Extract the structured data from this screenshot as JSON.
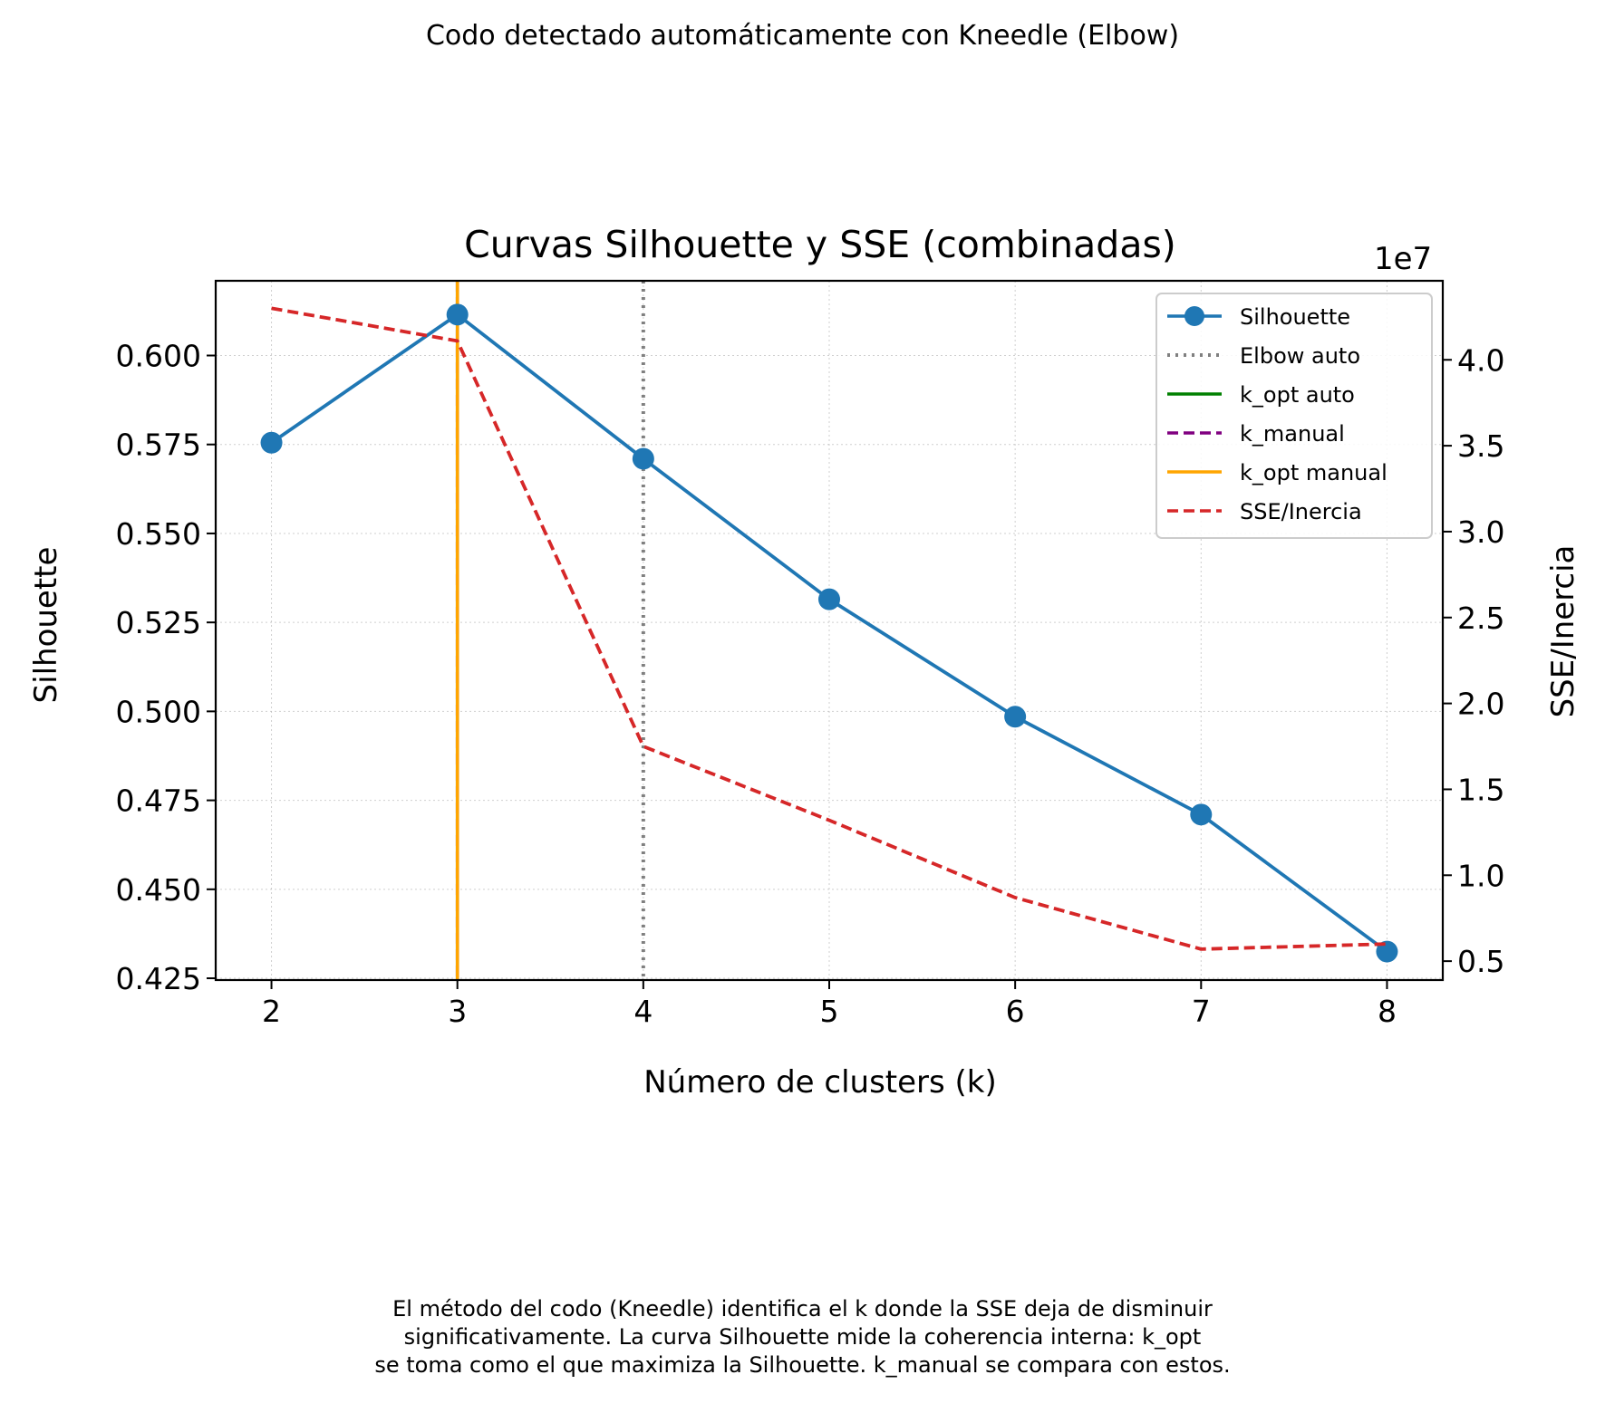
{
  "suptitle": "Codo detectado automáticamente con Kneedle (Elbow)",
  "caption": {
    "lines": [
      "El método del codo (Kneedle) identifica el k donde la SSE deja de disminuir",
      "significativamente. La curva Silhouette mide la coherencia interna: k_opt",
      "se toma como el que maximiza la Silhouette. k_manual se compara con estos."
    ]
  },
  "chart_data": {
    "type": "line",
    "title": "Curvas Silhouette y SSE (combinadas)",
    "xlabel": "Número de clusters (k)",
    "ylabel": "Silhouette",
    "y2label": "SSE/Inercia",
    "y2_offset_text": "1e7",
    "x": [
      2,
      3,
      4,
      5,
      6,
      7,
      8
    ],
    "xlim": [
      1.7,
      8.3
    ],
    "ylim": [
      0.4245,
      0.621
    ],
    "y2lim": [
      0.39,
      4.46
    ],
    "x_ticks": [
      "2",
      "3",
      "4",
      "5",
      "6",
      "7",
      "8"
    ],
    "y_ticks": [
      "0.425",
      "0.450",
      "0.475",
      "0.500",
      "0.525",
      "0.550",
      "0.575",
      "0.600"
    ],
    "y2_ticks": [
      "0.5",
      "1.0",
      "1.5",
      "2.0",
      "2.5",
      "3.0",
      "3.5",
      "4.0"
    ],
    "grid": true,
    "legend_position": "top-right",
    "series": [
      {
        "name": "Silhouette",
        "axis": "left",
        "style": "solid-marker",
        "color": "#1f77b4",
        "values": [
          0.5755,
          0.6115,
          0.571,
          0.5315,
          0.4985,
          0.471,
          0.4325
        ]
      },
      {
        "name": "SSE/Inercia",
        "axis": "right",
        "style": "dashed",
        "color": "#d62728",
        "values": [
          4.3,
          4.11,
          1.75,
          1.32,
          0.87,
          0.57,
          0.6
        ]
      }
    ],
    "vlines": [
      {
        "name": "Elbow auto",
        "x": 4,
        "style": "dotted",
        "color": "#808080"
      },
      {
        "name": "k_opt auto",
        "x": 3,
        "style": "solid",
        "color": "#008000"
      },
      {
        "name": "k_manual",
        "x": 3,
        "style": "dashed",
        "color": "#800080"
      },
      {
        "name": "k_opt manual",
        "x": 3,
        "style": "solid",
        "color": "#ffa500"
      }
    ],
    "legend": [
      {
        "label": "Silhouette",
        "color": "#1f77b4",
        "style": "solid-marker"
      },
      {
        "label": "Elbow auto",
        "color": "#808080",
        "style": "dotted"
      },
      {
        "label": "k_opt auto",
        "color": "#008000",
        "style": "solid"
      },
      {
        "label": "k_manual",
        "color": "#800080",
        "style": "dashed"
      },
      {
        "label": "k_opt manual",
        "color": "#ffa500",
        "style": "solid"
      },
      {
        "label": "SSE/Inercia",
        "color": "#d62728",
        "style": "dashed"
      }
    ]
  }
}
